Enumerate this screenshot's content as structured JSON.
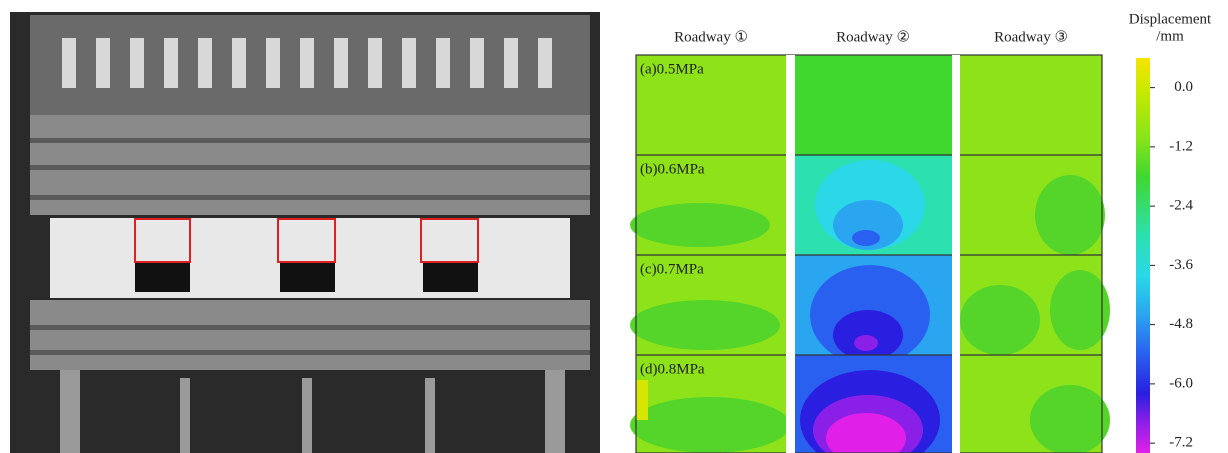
{
  "column_headers": [
    "Roadway ①",
    "Roadway ②",
    "Roadway ③"
  ],
  "row_labels": [
    "(a)0.5MPa",
    "(b)0.6MPa",
    "(c)0.7MPa",
    "(d)0.8MPa"
  ],
  "colorbar": {
    "title": "Displacement",
    "unit": "/mm",
    "range": [
      -7.4,
      0.6
    ],
    "ticks": [
      {
        "value": 0,
        "label": "0.0"
      },
      -1.2,
      -2.4,
      -3.6,
      -4.8,
      {
        "value": -6,
        "label": "-6.0"
      },
      -7.2
    ]
  }
}
